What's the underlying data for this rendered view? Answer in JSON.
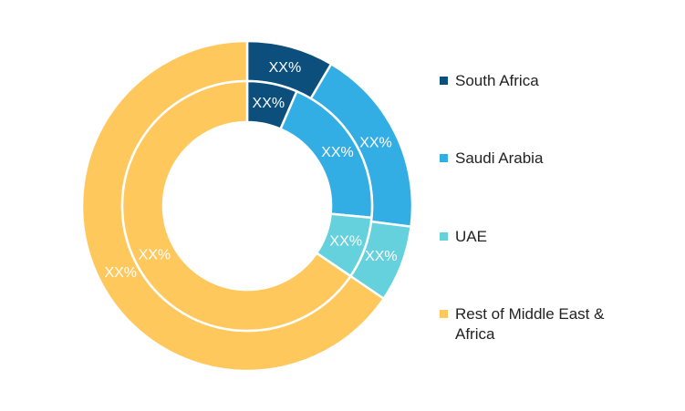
{
  "chart_data": {
    "type": "pie",
    "variant": "double-donut",
    "title": "",
    "legend_position": "right",
    "categories": [
      "South Africa",
      "Saudi Arabia",
      "UAE",
      "Rest of Middle East & Africa"
    ],
    "colors": [
      "#0c4f7c",
      "#33aee5",
      "#65d1dc",
      "#ffc85c"
    ],
    "series": [
      {
        "ring": "outer",
        "values": [
          8.5,
          18.5,
          7.5,
          65.5
        ],
        "labels": [
          "XX%",
          "XX%",
          "XX%",
          "XX%"
        ]
      },
      {
        "ring": "inner",
        "values": [
          6.5,
          20.0,
          8.0,
          65.5
        ],
        "labels": [
          "XX%",
          "XX%",
          "XX%",
          "XX%"
        ]
      }
    ]
  },
  "legend": {
    "items": [
      {
        "label": "South Africa",
        "color": "#0c4f7c"
      },
      {
        "label": "Saudi Arabia",
        "color": "#33aee5"
      },
      {
        "label": "UAE",
        "color": "#65d1dc"
      },
      {
        "label": "Rest of Middle East & Africa",
        "color": "#ffc85c"
      }
    ]
  }
}
